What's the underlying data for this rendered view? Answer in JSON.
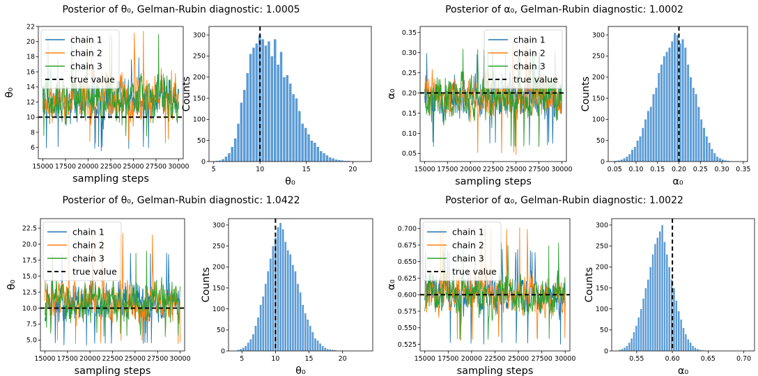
{
  "colors": {
    "chain1": "#1f77b4",
    "chain2": "#ff7f0e",
    "chain3": "#2ca02c",
    "hist": "#5b9bd5",
    "true_value": "#000000"
  },
  "panels": [
    {
      "title": "Posterior of θ₀, Gelman-Rubin diagnostic: 1.0005",
      "chart_data": [
        {
          "type": "line",
          "xlabel": "sampling steps",
          "ylabel": "θ₀",
          "xlim": [
            14500,
            30500
          ],
          "ylim": [
            4.5,
            22
          ],
          "xticks": [
            15000,
            17500,
            20000,
            22500,
            25000,
            27500,
            30000
          ],
          "yticks": [
            6,
            8,
            10,
            12,
            14,
            16,
            18,
            20,
            22
          ],
          "legend": "top-left",
          "series": [
            {
              "name": "chain 1",
              "mean": 12.5,
              "spread": 1.9,
              "min": 5.5,
              "max": 18
            },
            {
              "name": "chain 2",
              "mean": 12.5,
              "spread": 2.1,
              "min": 6.5,
              "max": 21.5
            },
            {
              "name": "chain 3",
              "mean": 12.5,
              "spread": 2.1,
              "min": 7,
              "max": 21
            }
          ],
          "hline": {
            "name": "true value",
            "y": 10
          }
        },
        {
          "type": "bar",
          "xlabel": "θ₀",
          "ylabel": "Counts",
          "xlim": [
            4.5,
            22
          ],
          "ylim": [
            0,
            320
          ],
          "xticks": [
            5,
            10,
            15,
            20
          ],
          "yticks": [
            0,
            50,
            100,
            150,
            200,
            250,
            300
          ],
          "bin_start": 5.2,
          "bin_width": 0.33,
          "counts": [
            2,
            3,
            6,
            12,
            20,
            35,
            55,
            90,
            140,
            170,
            210,
            255,
            270,
            280,
            300,
            290,
            275,
            285,
            250,
            290,
            230,
            260,
            200,
            205,
            185,
            160,
            150,
            120,
            90,
            80,
            65,
            50,
            45,
            35,
            25,
            20,
            15,
            10,
            8,
            5,
            4,
            3,
            2,
            2,
            1,
            1,
            1
          ],
          "vline": 10
        }
      ]
    },
    {
      "title": "Posterior of α₀, Gelman-Rubin diagnostic: 1.0002",
      "chart_data": [
        {
          "type": "line",
          "xlabel": "sampling steps",
          "ylabel": "α₀",
          "xlim": [
            14500,
            30500
          ],
          "ylim": [
            0.03,
            0.365
          ],
          "xticks": [
            15000,
            17500,
            20000,
            22500,
            25000,
            27500,
            30000
          ],
          "yticks": [
            0.05,
            0.1,
            0.15,
            0.2,
            0.25,
            0.3,
            0.35
          ],
          "legend": "top-right",
          "series": [
            {
              "name": "chain 1",
              "mean": 0.19,
              "spread": 0.035,
              "min": 0.07,
              "max": 0.3
            },
            {
              "name": "chain 2",
              "mean": 0.19,
              "spread": 0.038,
              "min": 0.045,
              "max": 0.33
            },
            {
              "name": "chain 3",
              "mean": 0.19,
              "spread": 0.036,
              "min": 0.06,
              "max": 0.31
            }
          ],
          "hline": {
            "name": "true value",
            "y": 0.2
          }
        },
        {
          "type": "bar",
          "xlabel": "α₀",
          "ylabel": "Counts",
          "xlim": [
            0.035,
            0.36
          ],
          "ylim": [
            0,
            320
          ],
          "xticks": [
            0.05,
            0.1,
            0.15,
            0.2,
            0.25,
            0.3,
            0.35
          ],
          "yticks": [
            0,
            50,
            100,
            150,
            200,
            250,
            300
          ],
          "bin_start": 0.045,
          "bin_width": 0.0062,
          "counts": [
            1,
            2,
            3,
            5,
            8,
            12,
            18,
            28,
            35,
            50,
            60,
            80,
            100,
            120,
            130,
            160,
            175,
            210,
            230,
            250,
            260,
            270,
            285,
            305,
            300,
            280,
            290,
            270,
            230,
            200,
            175,
            160,
            130,
            100,
            80,
            60,
            45,
            30,
            20,
            12,
            8,
            5,
            3,
            2,
            1
          ],
          "vline": 0.2
        }
      ]
    },
    {
      "title": "Posterior of θ₀, Gelman-Rubin diagnostic: 1.0422",
      "chart_data": [
        {
          "type": "line",
          "xlabel": "sampling steps",
          "ylabel": "θ₀",
          "xlim": [
            14500,
            30500
          ],
          "ylim": [
            3.3,
            24
          ],
          "xticks": [
            15000,
            17500,
            20000,
            22500,
            25000,
            27500,
            30000
          ],
          "yticks": [
            5.0,
            7.5,
            10.0,
            12.5,
            15.0,
            17.5,
            20.0,
            22.5
          ],
          "legend": "top-left",
          "series": [
            {
              "name": "chain 1",
              "mean": 11,
              "spread": 2.1,
              "min": 4,
              "max": 19
            },
            {
              "name": "chain 2",
              "mean": 11,
              "spread": 2.3,
              "min": 4.3,
              "max": 22
            },
            {
              "name": "chain 3",
              "mean": 11,
              "spread": 2.2,
              "min": 5.5,
              "max": 19
            }
          ],
          "hline": {
            "name": "true value",
            "y": 10
          }
        },
        {
          "type": "bar",
          "xlabel": "θ₀",
          "ylabel": "Counts",
          "xlim": [
            3,
            24.5
          ],
          "ylim": [
            0,
            315
          ],
          "xticks": [
            5,
            10,
            15,
            20
          ],
          "yticks": [
            0,
            50,
            100,
            150,
            200,
            250,
            300
          ],
          "bin_start": 4.3,
          "bin_width": 0.37,
          "counts": [
            3,
            5,
            8,
            12,
            20,
            28,
            40,
            60,
            80,
            110,
            130,
            160,
            190,
            220,
            250,
            270,
            295,
            305,
            290,
            260,
            240,
            230,
            205,
            190,
            160,
            140,
            110,
            90,
            75,
            60,
            45,
            30,
            25,
            18,
            12,
            8,
            5,
            4,
            3,
            2,
            1,
            1,
            1,
            1,
            0,
            0,
            0,
            0,
            0,
            0,
            1
          ],
          "vline": 10
        }
      ]
    },
    {
      "title": "Posterior of α₀, Gelman-Rubin diagnostic: 1.0022",
      "chart_data": [
        {
          "type": "line",
          "xlabel": "sampling steps",
          "ylabel": "α₀",
          "xlim": [
            14500,
            30500
          ],
          "ylim": [
            0.515,
            0.715
          ],
          "xticks": [
            15000,
            17500,
            20000,
            22500,
            25000,
            27500,
            30000
          ],
          "yticks": [
            0.525,
            0.55,
            0.575,
            0.6,
            0.625,
            0.65,
            0.675,
            0.7
          ],
          "legend": "top-left",
          "series": [
            {
              "name": "chain 1",
              "mean": 0.6,
              "spread": 0.02,
              "min": 0.523,
              "max": 0.67
            },
            {
              "name": "chain 2",
              "mean": 0.6,
              "spread": 0.022,
              "min": 0.53,
              "max": 0.705
            },
            {
              "name": "chain 3",
              "mean": 0.6,
              "spread": 0.021,
              "min": 0.53,
              "max": 0.68
            }
          ],
          "hline": {
            "name": "true value",
            "y": 0.6
          }
        },
        {
          "type": "bar",
          "xlabel": "α₀",
          "ylabel": "Counts",
          "xlim": [
            0.515,
            0.715
          ],
          "ylim": [
            0,
            315
          ],
          "xticks": [
            0.55,
            0.6,
            0.65,
            0.7
          ],
          "yticks": [
            0,
            50,
            100,
            150,
            200,
            250,
            300
          ],
          "bin_start": 0.525,
          "bin_width": 0.0033,
          "counts": [
            3,
            5,
            8,
            12,
            20,
            30,
            45,
            60,
            80,
            100,
            125,
            150,
            170,
            200,
            230,
            255,
            270,
            285,
            300,
            260,
            230,
            200,
            170,
            150,
            120,
            95,
            75,
            55,
            40,
            28,
            20,
            12,
            8,
            5,
            3,
            2,
            1,
            1,
            1,
            1
          ],
          "vline": 0.6
        }
      ]
    }
  ]
}
